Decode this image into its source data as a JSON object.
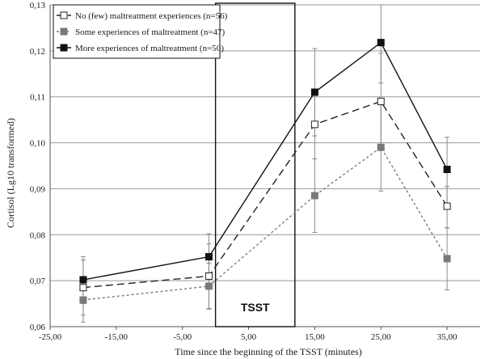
{
  "chart_data": {
    "type": "line",
    "xlabel": "Time since the beginning of the TSST (minutes)",
    "ylabel": "Cortisol (Lg10 transformed)",
    "xlim": [
      -25,
      40
    ],
    "ylim": [
      0.06,
      0.13
    ],
    "x_ticks": [
      -25,
      -15,
      -5,
      5,
      15,
      25,
      35
    ],
    "x_tick_labels": [
      "-25,00",
      "-15,00",
      "-5,00",
      "5,00",
      "15,00",
      "25,00",
      "35,00"
    ],
    "y_ticks": [
      0.06,
      0.07,
      0.08,
      0.09,
      0.1,
      0.11,
      0.12,
      0.13
    ],
    "y_tick_labels": [
      "0,06",
      "0,07",
      "0,08",
      "0,09",
      "0,10",
      "0,11",
      "0,12",
      "0,13"
    ],
    "grid": "horizontal",
    "legend_position": "top-left",
    "x": [
      -20,
      -1,
      15,
      25,
      35
    ],
    "series": [
      {
        "name": "No (few) maltreatment experiences (n=56)",
        "values": [
          0.0685,
          0.071,
          0.104,
          0.109,
          0.0862
        ],
        "err_low": [
          0.0625,
          0.064,
          0.0965,
          0.0985,
          0.0815
        ],
        "err_high": [
          0.0745,
          0.078,
          0.1115,
          0.1195,
          0.0905
        ],
        "line_style": "dashed",
        "marker": "open-square",
        "color": "#222222"
      },
      {
        "name": "Some experiences of maltreatment (n=47)",
        "values": [
          0.0658,
          0.0688,
          0.0885,
          0.099,
          0.0748
        ],
        "err_low": [
          0.061,
          0.0638,
          0.0805,
          0.0895,
          0.068
        ],
        "err_high": [
          0.0708,
          0.0738,
          0.0965,
          0.1085,
          0.0815
        ],
        "line_style": "dotted",
        "marker": "gray-square",
        "color": "#7a7a7a"
      },
      {
        "name": "More experiences of maltreatment (n=50)",
        "values": [
          0.0702,
          0.0752,
          0.111,
          0.1218,
          0.0942
        ],
        "err_low": [
          0.065,
          0.0685,
          0.1015,
          0.113,
          0.086
        ],
        "err_high": [
          0.0752,
          0.0802,
          0.1205,
          0.13,
          0.1012
        ],
        "line_style": "solid",
        "marker": "filled-square",
        "color": "#111111"
      }
    ],
    "annotations": [
      {
        "text": "TSST",
        "x_start": 0,
        "x_end": 12
      }
    ]
  }
}
